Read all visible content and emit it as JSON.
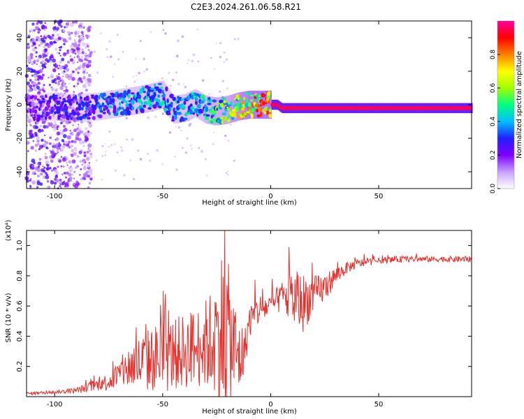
{
  "title": "C2E3.2024.261.06.58.R21",
  "chart_data": [
    {
      "type": "heatmap",
      "name": "spectrogram",
      "xlabel": "Height of straight line (km)",
      "ylabel": "Frequency (Hz)",
      "xlim": [
        -113,
        93
      ],
      "ylim": [
        -50,
        50
      ],
      "x_ticks": [
        -100,
        -50,
        0,
        50
      ],
      "x_tick_labels": [
        "-100",
        "-50",
        "0",
        "50"
      ],
      "y_ticks": [
        -40,
        -20,
        0,
        20,
        40
      ],
      "y_tick_labels": [
        "-40",
        "-20",
        "0",
        "20",
        "40"
      ],
      "colorbar": {
        "label": "Normalized spectral amplitude",
        "range": [
          0,
          1
        ],
        "ticks": [
          0,
          0.2,
          0.4,
          0.6,
          0.8
        ],
        "tick_labels": [
          "0.0",
          "0.2",
          "0.4",
          "0.6",
          "0.8"
        ],
        "colors": [
          "#ffffff",
          "#c8a0ff",
          "#8000ff",
          "#2020ff",
          "#00c0ff",
          "#00ff80",
          "#a0ff00",
          "#ffff00",
          "#ff8000",
          "#ff0000",
          "#ff00a0"
        ]
      },
      "ridge": [
        {
          "x": -110,
          "freq": -2,
          "amp": 0.25
        },
        {
          "x": -100,
          "freq": -1,
          "amp": 0.3
        },
        {
          "x": -90,
          "freq": -2,
          "amp": 0.3
        },
        {
          "x": -80,
          "freq": -1,
          "amp": 0.35
        },
        {
          "x": -70,
          "freq": 1,
          "amp": 0.4
        },
        {
          "x": -60,
          "freq": 3,
          "amp": 0.45
        },
        {
          "x": -50,
          "freq": 6,
          "amp": 0.45
        },
        {
          "x": -45,
          "freq": -3,
          "amp": 0.4
        },
        {
          "x": -40,
          "freq": -2,
          "amp": 0.45
        },
        {
          "x": -35,
          "freq": 1,
          "amp": 0.45
        },
        {
          "x": -30,
          "freq": -3,
          "amp": 0.5
        },
        {
          "x": -25,
          "freq": -4,
          "amp": 0.55
        },
        {
          "x": -20,
          "freq": -3,
          "amp": 0.6
        },
        {
          "x": -15,
          "freq": -1,
          "amp": 0.7
        },
        {
          "x": -10,
          "freq": 0,
          "amp": 0.8
        },
        {
          "x": 0,
          "freq": 0,
          "amp": 0.95
        },
        {
          "x": 3,
          "freq": 0,
          "amp": 0.95
        },
        {
          "x": 5,
          "freq": -2,
          "amp": 0.95
        },
        {
          "x": 20,
          "freq": -2,
          "amp": 0.95
        },
        {
          "x": 50,
          "freq": -2,
          "amp": 0.95
        },
        {
          "x": 93,
          "freq": -2,
          "amp": 0.95
        }
      ]
    },
    {
      "type": "line",
      "name": "snr",
      "xlabel": "Height of straight line (km)",
      "ylabel": "SNR (10 * v/v)",
      "y_multiplier": "(x10⁴)",
      "color": "#e8302c",
      "xlim": [
        -113,
        93
      ],
      "ylim": [
        0,
        1.1
      ],
      "x_ticks": [
        -100,
        -50,
        0,
        50
      ],
      "x_tick_labels": [
        "-100",
        "-50",
        "0",
        "50"
      ],
      "y_ticks": [
        0.2,
        0.4,
        0.6,
        0.8,
        1.0
      ],
      "y_tick_labels": [
        "0.2",
        "0.4",
        "0.6",
        "0.8",
        "1.0"
      ],
      "x": [
        -113,
        -100,
        -90,
        -85,
        -80,
        -75,
        -70,
        -65,
        -60,
        -55,
        -50,
        -45,
        -40,
        -35,
        -30,
        -25,
        -22,
        -20,
        -18,
        -15,
        -12,
        -10,
        -5,
        0,
        5,
        10,
        15,
        20,
        25,
        30,
        35,
        40,
        50,
        60,
        70,
        80,
        93
      ],
      "y": [
        0.02,
        0.03,
        0.04,
        0.06,
        0.08,
        0.1,
        0.15,
        0.2,
        0.22,
        0.25,
        0.26,
        0.28,
        0.3,
        0.32,
        0.35,
        0.38,
        0.45,
        0.42,
        0.35,
        0.25,
        0.3,
        0.5,
        0.58,
        0.6,
        0.66,
        0.65,
        0.62,
        0.68,
        0.72,
        0.8,
        0.85,
        0.88,
        0.9,
        0.91,
        0.91,
        0.91,
        0.91
      ],
      "spread": [
        0.01,
        0.01,
        0.02,
        0.03,
        0.04,
        0.06,
        0.1,
        0.15,
        0.2,
        0.22,
        0.25,
        0.24,
        0.25,
        0.26,
        0.3,
        0.4,
        0.6,
        0.5,
        0.4,
        0.3,
        0.15,
        0.12,
        0.1,
        0.08,
        0.1,
        0.2,
        0.2,
        0.12,
        0.1,
        0.06,
        0.04,
        0.03,
        0.02,
        0.02,
        0.02,
        0.02,
        0.02
      ]
    }
  ]
}
